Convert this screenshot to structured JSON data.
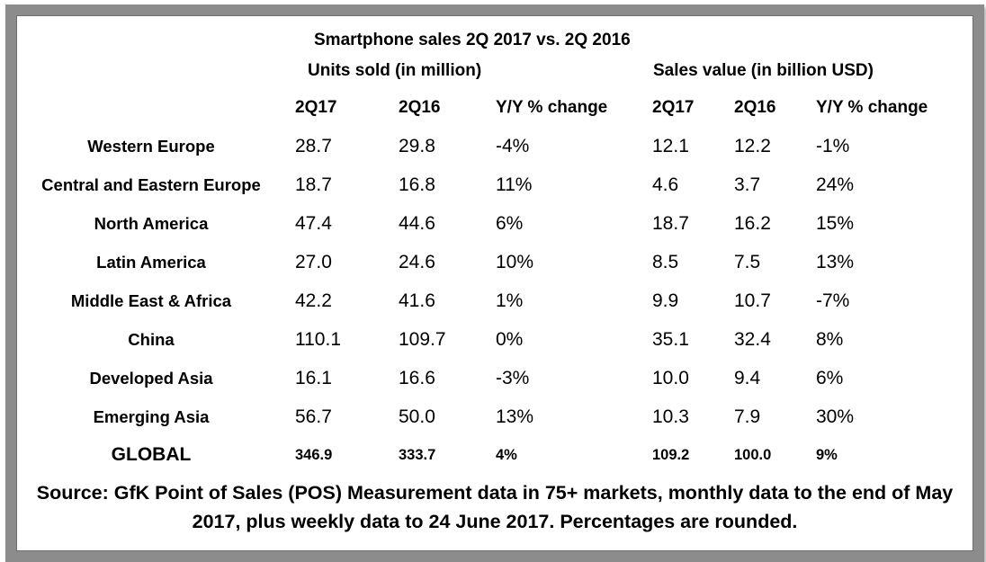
{
  "title": "Smartphone sales 2Q 2017 vs. 2Q 2016",
  "groups": {
    "units": "Units sold (in million)",
    "value": "Sales value (in billion USD)"
  },
  "columns": [
    "2Q17",
    "2Q16",
    "Y/Y % change",
    "2Q17",
    "2Q16",
    "Y/Y % change"
  ],
  "rows": [
    {
      "region": "Western Europe",
      "values": [
        "28.7",
        "29.8",
        "-4%",
        "12.1",
        "12.2",
        "-1%"
      ]
    },
    {
      "region": "Central and Eastern Europe",
      "values": [
        "18.7",
        "16.8",
        "11%",
        "4.6",
        "3.7",
        "24%"
      ]
    },
    {
      "region": "North America",
      "values": [
        "47.4",
        "44.6",
        "6%",
        "18.7",
        "16.2",
        "15%"
      ]
    },
    {
      "region": "Latin America",
      "values": [
        "27.0",
        "24.6",
        "10%",
        "8.5",
        "7.5",
        "13%"
      ]
    },
    {
      "region": "Middle East & Africa",
      "values": [
        "42.2",
        "41.6",
        "1%",
        "9.9",
        "10.7",
        "-7%"
      ]
    },
    {
      "region": "China",
      "values": [
        "110.1",
        "109.7",
        "0%",
        "35.1",
        "32.4",
        "8%"
      ]
    },
    {
      "region": "Developed Asia",
      "values": [
        "16.1",
        "16.6",
        "-3%",
        "10.0",
        "9.4",
        "6%"
      ]
    },
    {
      "region": "Emerging Asia",
      "values": [
        "56.7",
        "50.0",
        "13%",
        "10.3",
        "7.9",
        "30%"
      ]
    }
  ],
  "global": {
    "region": "GLOBAL",
    "values": [
      "346.9",
      "333.7",
      "4%",
      "109.2",
      "100.0",
      "9%"
    ]
  },
  "source": "Source: GfK Point of Sales (POS) Measurement data in 75+ markets, monthly data to the end of May 2017, plus weekly data to 24 June 2017. Percentages are rounded."
}
